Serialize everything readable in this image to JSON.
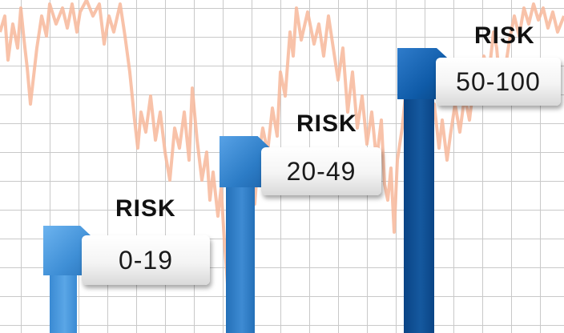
{
  "colors": {
    "background_line": "#f7b79a",
    "grid": "#c9c9c9",
    "tier_low": "#3f8fd6",
    "tier_mid": "#2c75c0",
    "tier_high": "#0d4e94"
  },
  "tiers": [
    {
      "id": "low",
      "label": "RISK",
      "range": "0-19"
    },
    {
      "id": "mid",
      "label": "RISK",
      "range": "20-49"
    },
    {
      "id": "high",
      "label": "RISK",
      "range": "50-100"
    }
  ]
}
